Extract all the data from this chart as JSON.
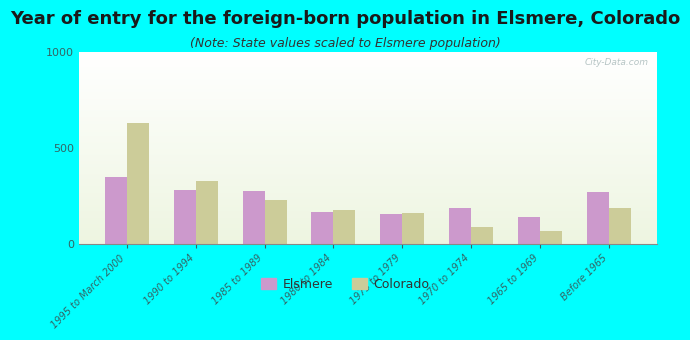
{
  "title": "Year of entry for the foreign-born population in Elsmere, Colorado",
  "subtitle": "(Note: State values scaled to Elsmere population)",
  "categories": [
    "1995 to March 2000",
    "1990 to 1994",
    "1985 to 1989",
    "1980 to 1984",
    "1975 to 1979",
    "1970 to 1974",
    "1965 to 1969",
    "Before 1965"
  ],
  "elsmere_values": [
    350,
    280,
    275,
    165,
    155,
    185,
    140,
    270
  ],
  "colorado_values": [
    630,
    325,
    230,
    175,
    160,
    90,
    65,
    185
  ],
  "elsmere_color": "#cc99cc",
  "colorado_color": "#cccc99",
  "background_color": "#00ffff",
  "ylim": [
    0,
    1000
  ],
  "yticks": [
    0,
    500,
    1000
  ],
  "watermark": "City-Data.com",
  "legend_elsmere": "Elsmere",
  "legend_colorado": "Colorado",
  "title_fontsize": 13,
  "subtitle_fontsize": 9,
  "tick_color": "#336666",
  "title_color": "#1a1a1a"
}
